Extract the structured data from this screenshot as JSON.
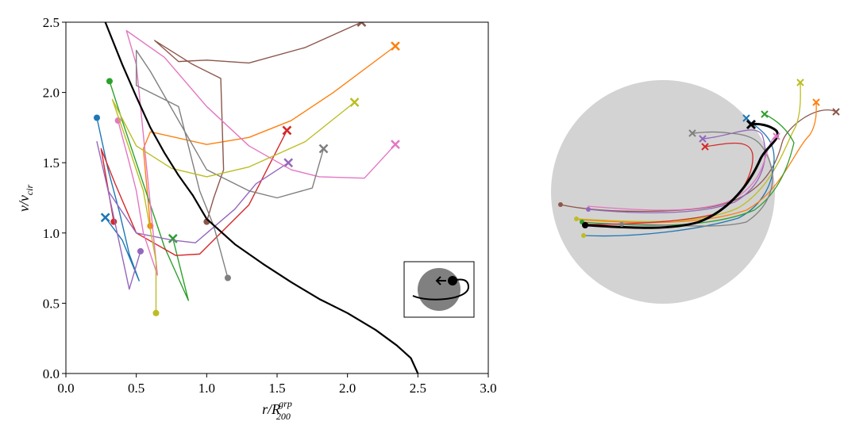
{
  "chart_data": {
    "type": "line",
    "xlabel": {
      "text": "r/R",
      "superscript": "grp",
      "subscript": "200"
    },
    "ylabel": {
      "text": "v/v",
      "subscript": "cir"
    },
    "xlim": [
      0,
      3
    ],
    "ylim": [
      0,
      2.5
    ],
    "xticks": [
      {
        "value": 0,
        "label": "0.0"
      },
      {
        "value": 0.5,
        "label": "0.5"
      },
      {
        "value": 1,
        "label": "1.0"
      },
      {
        "value": 1.5,
        "label": "1.5"
      },
      {
        "value": 2,
        "label": "2.0"
      },
      {
        "value": 2.5,
        "label": "2.5"
      },
      {
        "value": 3,
        "label": "3.0"
      }
    ],
    "yticks": [
      {
        "value": 0,
        "label": "0.0"
      },
      {
        "value": 0.5,
        "label": "0.5"
      },
      {
        "value": 1,
        "label": "1.0"
      },
      {
        "value": 1.5,
        "label": "1.5"
      },
      {
        "value": 2,
        "label": "2.0"
      },
      {
        "value": 2.5,
        "label": "2.5"
      }
    ],
    "grid": false,
    "markers": {
      "first": "circle",
      "last": "x"
    },
    "curve": {
      "color": "#000000",
      "x": [
        0.28,
        0.4,
        0.5,
        0.6,
        0.7,
        0.8,
        0.9,
        1.0,
        1.2,
        1.4,
        1.6,
        1.8,
        2.0,
        2.2,
        2.35,
        2.45,
        2.5
      ],
      "values": [
        2.5,
        2.2,
        1.97,
        1.75,
        1.57,
        1.41,
        1.27,
        1.1,
        0.92,
        0.78,
        0.65,
        0.53,
        0.43,
        0.31,
        0.2,
        0.11,
        0.0
      ]
    },
    "series": [
      {
        "color": "#1f77b4",
        "x": [
          0.22,
          0.3,
          0.38,
          0.45,
          0.52,
          0.4,
          0.28
        ],
        "values": [
          1.82,
          1.45,
          1.15,
          0.85,
          0.66,
          0.95,
          1.11
        ]
      },
      {
        "color": "#ff7f0e",
        "x": [
          0.6,
          0.55,
          0.6,
          1.0,
          1.3,
          1.6,
          1.9,
          2.34
        ],
        "values": [
          1.05,
          1.6,
          1.72,
          1.63,
          1.68,
          1.8,
          2.0,
          2.33
        ]
      },
      {
        "color": "#2ca02c",
        "x": [
          0.31,
          0.4,
          0.5,
          0.6,
          0.7,
          0.87,
          0.8,
          0.76
        ],
        "values": [
          2.08,
          1.8,
          1.5,
          1.2,
          0.9,
          0.52,
          0.8,
          0.96
        ]
      },
      {
        "color": "#d62728",
        "x": [
          0.34,
          0.25,
          0.35,
          0.5,
          0.78,
          0.95,
          1.1,
          1.3,
          1.57
        ],
        "values": [
          1.08,
          1.6,
          1.35,
          1.0,
          0.84,
          0.85,
          1.0,
          1.2,
          1.73
        ]
      },
      {
        "color": "#9467bd",
        "x": [
          0.53,
          0.45,
          0.3,
          0.22,
          0.3,
          0.5,
          0.75,
          0.92,
          1.2,
          1.35,
          1.58
        ],
        "values": [
          0.87,
          0.6,
          1.3,
          1.65,
          1.3,
          1.0,
          0.95,
          0.93,
          1.17,
          1.35,
          1.5
        ]
      },
      {
        "color": "#8c564b",
        "x": [
          1.0,
          1.05,
          1.12,
          1.1,
          0.9,
          0.63,
          0.8,
          1.0,
          1.3,
          1.7,
          2.1
        ],
        "values": [
          1.08,
          1.25,
          1.45,
          2.1,
          2.2,
          2.37,
          2.22,
          2.23,
          2.21,
          2.32,
          2.5
        ]
      },
      {
        "color": "#e377c2",
        "x": [
          0.37,
          0.45,
          0.5,
          0.55,
          0.65,
          0.5,
          0.43,
          0.7,
          1.0,
          1.3,
          1.6,
          1.8,
          2.12,
          2.34
        ],
        "values": [
          1.8,
          1.5,
          1.3,
          1.0,
          0.7,
          2.2,
          2.44,
          2.25,
          1.9,
          1.62,
          1.45,
          1.4,
          1.39,
          1.63
        ]
      },
      {
        "color": "#7f7f7f",
        "x": [
          1.15,
          1.05,
          0.95,
          0.8,
          0.5,
          0.5,
          0.6,
          1.0,
          1.3,
          1.5,
          1.75,
          1.83
        ],
        "values": [
          0.68,
          1.05,
          1.3,
          1.9,
          2.05,
          2.3,
          2.15,
          1.45,
          1.3,
          1.25,
          1.32,
          1.6
        ]
      },
      {
        "color": "#bcbd22",
        "x": [
          0.64,
          0.64,
          0.55,
          0.45,
          0.33,
          0.5,
          0.75,
          1.0,
          1.3,
          1.7,
          2.05
        ],
        "values": [
          0.43,
          0.8,
          1.3,
          1.6,
          1.95,
          1.62,
          1.46,
          1.4,
          1.47,
          1.65,
          1.93
        ]
      }
    ]
  }
}
